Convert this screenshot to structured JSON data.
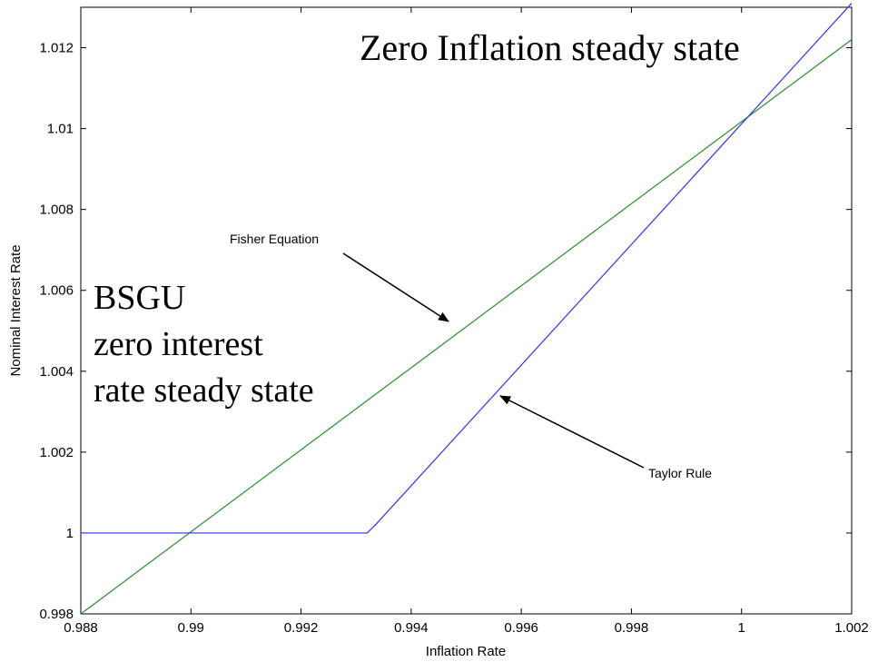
{
  "chart_data": {
    "type": "line",
    "title": "",
    "xlabel": "Inflation Rate",
    "ylabel": "Nominal Interest Rate",
    "xlim": [
      0.988,
      1.002
    ],
    "ylim": [
      0.998,
      1.013
    ],
    "xticks": [
      0.988,
      0.99,
      0.992,
      0.994,
      0.996,
      0.998,
      1,
      1.002
    ],
    "xtick_labels": [
      "0.988",
      "0.99",
      "0.992",
      "0.994",
      "0.996",
      "0.998",
      "1",
      "1.002"
    ],
    "yticks": [
      0.998,
      1,
      1.002,
      1.004,
      1.006,
      1.008,
      1.01,
      1.012
    ],
    "ytick_labels": [
      "0.998",
      "1",
      "1.002",
      "1.004",
      "1.006",
      "1.008",
      "1.01",
      "1.012"
    ],
    "grid": false,
    "series": [
      {
        "color": "#2e8b2e",
        "x": [
          0.988,
          1.002
        ],
        "y": [
          0.998,
          1.0122
        ]
      },
      {
        "color": "#3333ee",
        "x": [
          0.988,
          0.9932,
          0.99335,
          1.002
        ],
        "y": [
          1.0,
          1.0,
          1.0002,
          1.0131
        ]
      }
    ],
    "annotations": [
      {
        "id": "zero_inflation",
        "text": "Zero Inflation steady state"
      },
      {
        "id": "bsgu_1",
        "text": "BSGU"
      },
      {
        "id": "bsgu_2",
        "text": "zero interest"
      },
      {
        "id": "bsgu_3",
        "text": "rate steady state"
      },
      {
        "id": "fisher",
        "text": "Fisher Equation",
        "arrow_to": [
          0.9947,
          1.0055
        ]
      },
      {
        "id": "taylor",
        "text": "Taylor Rule",
        "arrow_to": [
          0.99555,
          1.0034
        ]
      }
    ]
  }
}
